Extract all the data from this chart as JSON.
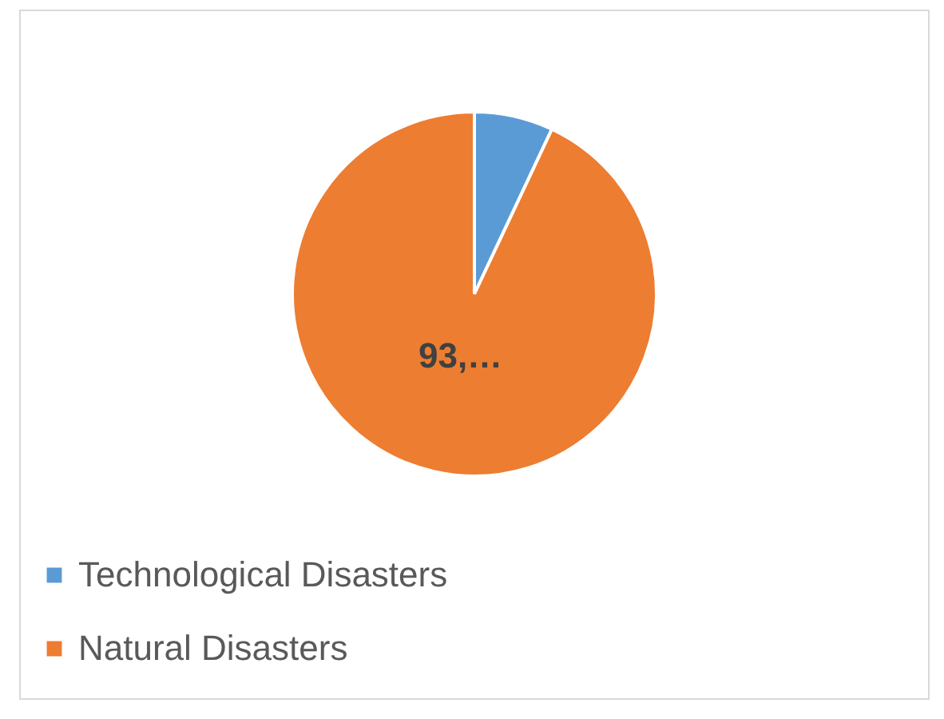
{
  "chart_data": {
    "type": "pie",
    "categories": [
      "Technological Disasters",
      "Natural Disasters"
    ],
    "values": [
      7,
      93
    ],
    "colors": [
      "#5b9bd5",
      "#ed7d31"
    ],
    "value_labels": [
      null,
      "93,…"
    ],
    "legend": "bottom"
  }
}
